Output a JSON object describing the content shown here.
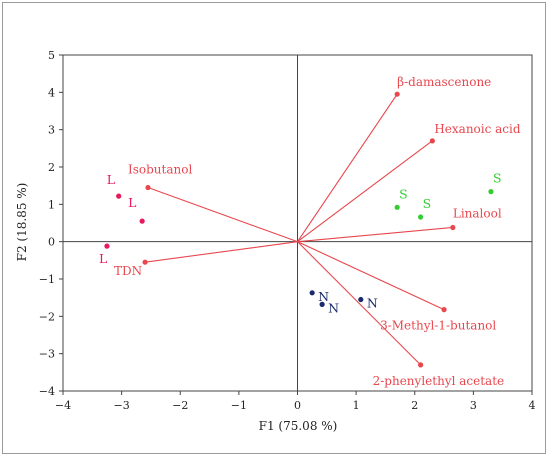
{
  "chart_data": {
    "type": "scatter",
    "xlabel": "F1 (75.08 %)",
    "ylabel": "F2 (18.85 %)",
    "xlim": [
      -4,
      4
    ],
    "ylim": [
      -4,
      5
    ],
    "x_ticks": [
      "−4",
      "−3",
      "−2",
      "−1",
      "0",
      "1",
      "2",
      "3",
      "4"
    ],
    "y_ticks": [
      "5",
      "4",
      "3",
      "2",
      "1",
      "0",
      "−1",
      "−2",
      "−3",
      "−4"
    ],
    "grid": false,
    "colors": {
      "vectors": "#e8474e",
      "group_L": "#e8195a",
      "group_S": "#33cc33",
      "group_N": "#1a2a6c"
    },
    "vectors": [
      {
        "name": "β-damascenone",
        "x": 1.7,
        "y": 3.95
      },
      {
        "name": "Hexanoic acid",
        "x": 2.3,
        "y": 2.7
      },
      {
        "name": "Linalool",
        "x": 2.65,
        "y": 0.38
      },
      {
        "name": "3-Methyl-1-butanol",
        "x": 2.5,
        "y": -1.82
      },
      {
        "name": "2-phenylethyl acetate",
        "x": 2.1,
        "y": -3.3
      },
      {
        "name": "Isobutanol",
        "x": -2.55,
        "y": 1.45
      },
      {
        "name": "TDN",
        "x": -2.6,
        "y": -0.55
      }
    ],
    "series": [
      {
        "name": "L",
        "points": [
          [
            -3.05,
            1.22
          ],
          [
            -2.65,
            0.55
          ],
          [
            -3.25,
            -0.12
          ]
        ]
      },
      {
        "name": "S",
        "points": [
          [
            1.7,
            0.92
          ],
          [
            2.1,
            0.66
          ],
          [
            3.3,
            1.34
          ]
        ]
      },
      {
        "name": "N",
        "points": [
          [
            0.25,
            -1.37
          ],
          [
            0.42,
            -1.68
          ],
          [
            1.08,
            -1.55
          ]
        ]
      }
    ]
  }
}
